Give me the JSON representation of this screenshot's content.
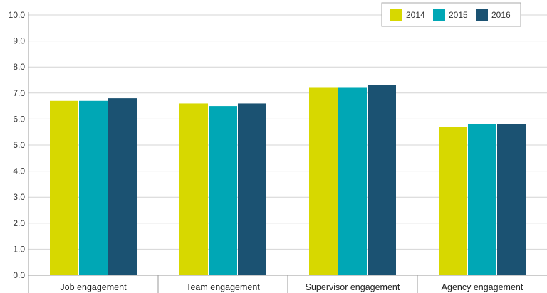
{
  "chart_data": {
    "type": "bar",
    "categories": [
      "Job engagement",
      "Team engagement",
      "Supervisor engagement",
      "Agency engagement"
    ],
    "series": [
      {
        "name": "2014",
        "color": "#d7d800",
        "values": [
          6.7,
          6.6,
          7.2,
          5.7
        ]
      },
      {
        "name": "2015",
        "color": "#00a7b5",
        "values": [
          6.7,
          6.5,
          7.2,
          5.8
        ]
      },
      {
        "name": "2016",
        "color": "#1b5272",
        "values": [
          6.8,
          6.6,
          7.3,
          5.8
        ]
      }
    ],
    "ylim": [
      0,
      10
    ],
    "yticks": [
      "0.0",
      "1.0",
      "2.0",
      "3.0",
      "4.0",
      "5.0",
      "6.0",
      "7.0",
      "8.0",
      "9.0",
      "10.0"
    ],
    "grid": true,
    "legend_position": "top-right"
  }
}
